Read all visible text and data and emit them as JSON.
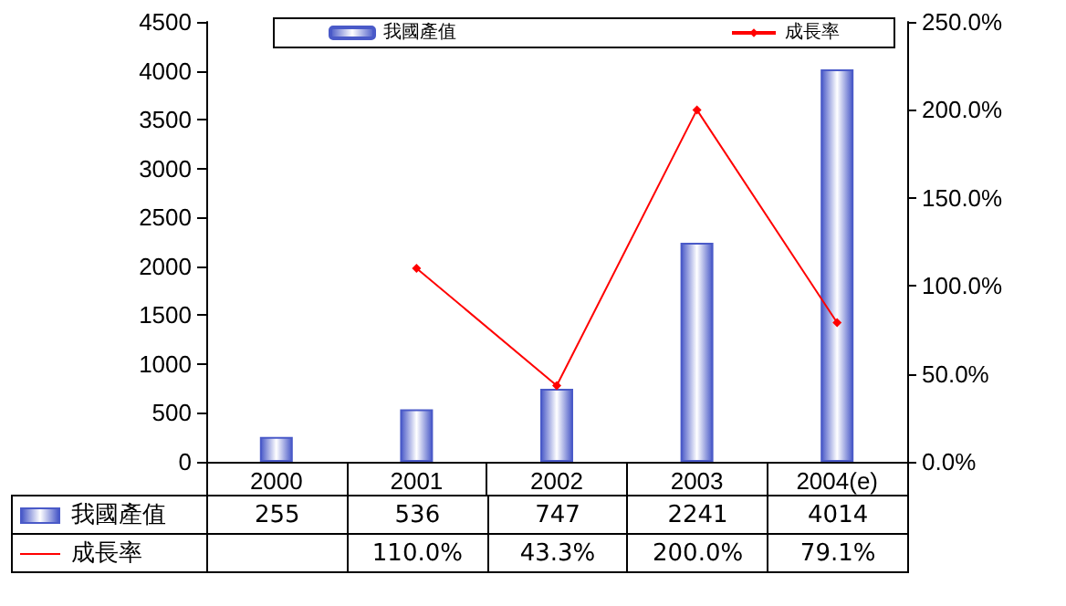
{
  "chart_data": {
    "type": "bar",
    "categories": [
      "2000",
      "2001",
      "2002",
      "2003",
      "2004(e)"
    ],
    "series": [
      {
        "name": "我國產值",
        "color": "#4a5ac8",
        "values": [
          255,
          536,
          747,
          2241,
          4014
        ],
        "value_labels": [
          "255",
          "536",
          "747",
          "2241",
          "4014"
        ]
      },
      {
        "name": "成長率",
        "type": "line",
        "axis": "y2",
        "color": "#ff0000",
        "marker": "diamond",
        "values": [
          null,
          110.0,
          43.3,
          200.0,
          79.1
        ],
        "value_labels": [
          null,
          "110.0%",
          "43.3%",
          "200.0%",
          "79.1%"
        ]
      }
    ],
    "ylim": [
      0,
      4500
    ],
    "yticks": [
      0,
      500,
      1000,
      1500,
      2000,
      2500,
      3000,
      3500,
      4000,
      4500
    ],
    "y2lim": [
      0,
      250
    ],
    "y2ticks": [
      {
        "value": 0,
        "label": "0.0%"
      },
      {
        "value": 50,
        "label": "50.0%"
      },
      {
        "value": 100,
        "label": "100.0%"
      },
      {
        "value": 150,
        "label": "150.0%"
      },
      {
        "value": 200,
        "label": "200.0%"
      },
      {
        "value": 250,
        "label": "250.0%"
      }
    ],
    "legend": "top",
    "grid": false
  }
}
